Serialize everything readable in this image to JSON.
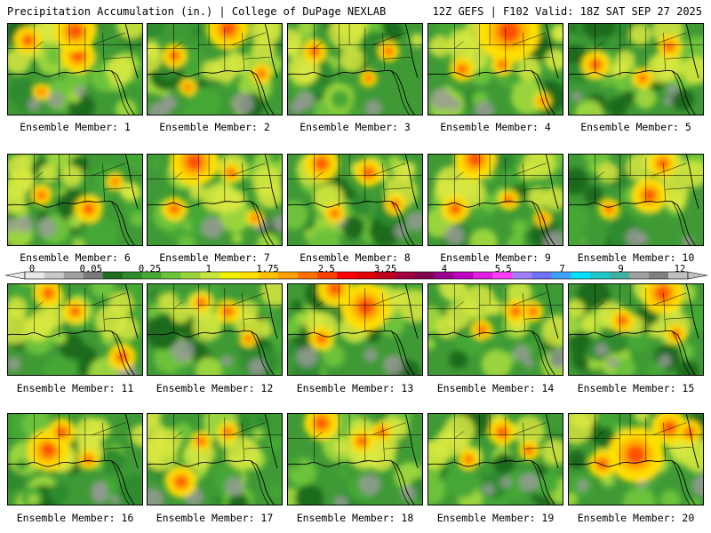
{
  "header": {
    "title_left": "Precipitation Accumulation (in.) | College of DuPage NEXLAB",
    "title_right": "12Z GEFS | F102 Valid: 18Z SAT SEP 27 2025"
  },
  "colorbar": {
    "labels": [
      "0",
      "0.05",
      "0.25",
      "1",
      "1.75",
      "2.5",
      "3.25",
      "4",
      "5.5",
      "7",
      "9",
      "12"
    ],
    "colors": [
      "#e8e8e8",
      "#c8c8c8",
      "#a0a0a0",
      "#7a7a7a",
      "#1f6b1f",
      "#2e8b2e",
      "#45a835",
      "#6cc23a",
      "#9ad43c",
      "#c8e640",
      "#f0f000",
      "#ffe000",
      "#ffc000",
      "#ffa000",
      "#ff7000",
      "#ff4000",
      "#ff0000",
      "#e00000",
      "#c00020",
      "#a00040",
      "#800050",
      "#9a0090",
      "#c000c0",
      "#e020e0",
      "#ff40ff",
      "#a080ff",
      "#7070ff",
      "#40a0ff",
      "#00e0ff",
      "#20c8c8",
      "#40b0a0",
      "#a0a0a0",
      "#808080",
      "#c0c0c0"
    ]
  },
  "members": [
    {
      "caption": "Ensemble Member: 1",
      "hot": [
        [
          0.52,
          0.35,
          0.1
        ],
        [
          0.5,
          0.08,
          0.12
        ],
        [
          0.15,
          0.18,
          0.08
        ],
        [
          0.25,
          0.75,
          0.05
        ]
      ]
    },
    {
      "caption": "Ensemble Member: 2",
      "hot": [
        [
          0.6,
          0.05,
          0.12
        ],
        [
          0.85,
          0.55,
          0.06
        ],
        [
          0.2,
          0.35,
          0.07
        ],
        [
          0.3,
          0.7,
          0.05
        ]
      ]
    },
    {
      "caption": "Ensemble Member: 3",
      "hot": [
        [
          0.2,
          0.3,
          0.07
        ],
        [
          0.75,
          0.3,
          0.06
        ],
        [
          0.6,
          0.6,
          0.05
        ]
      ]
    },
    {
      "caption": "Ensemble Member: 4",
      "hot": [
        [
          0.6,
          0.08,
          0.18
        ],
        [
          0.25,
          0.5,
          0.07
        ],
        [
          0.85,
          0.85,
          0.05
        ],
        [
          0.55,
          0.45,
          0.06
        ]
      ]
    },
    {
      "caption": "Ensemble Member: 5",
      "hot": [
        [
          0.2,
          0.45,
          0.08
        ],
        [
          0.75,
          0.25,
          0.07
        ],
        [
          0.55,
          0.6,
          0.06
        ]
      ]
    },
    {
      "caption": "Ensemble Member: 6",
      "hot": [
        [
          0.6,
          0.6,
          0.08
        ],
        [
          0.25,
          0.45,
          0.06
        ],
        [
          0.8,
          0.3,
          0.05
        ]
      ]
    },
    {
      "caption": "Ensemble Member: 7",
      "hot": [
        [
          0.35,
          0.08,
          0.14
        ],
        [
          0.62,
          0.2,
          0.06
        ],
        [
          0.2,
          0.6,
          0.07
        ],
        [
          0.8,
          0.7,
          0.05
        ]
      ]
    },
    {
      "caption": "Ensemble Member: 8",
      "hot": [
        [
          0.25,
          0.1,
          0.1
        ],
        [
          0.6,
          0.2,
          0.08
        ],
        [
          0.8,
          0.55,
          0.06
        ],
        [
          0.35,
          0.65,
          0.06
        ]
      ]
    },
    {
      "caption": "Ensemble Member: 9",
      "hot": [
        [
          0.35,
          0.05,
          0.12
        ],
        [
          0.2,
          0.6,
          0.08
        ],
        [
          0.6,
          0.5,
          0.06
        ],
        [
          0.85,
          0.7,
          0.05
        ]
      ]
    },
    {
      "caption": "Ensemble Member: 10",
      "hot": [
        [
          0.6,
          0.45,
          0.1
        ],
        [
          0.7,
          0.1,
          0.08
        ],
        [
          0.3,
          0.6,
          0.06
        ]
      ]
    },
    {
      "caption": "Ensemble Member: 11",
      "hot": [
        [
          0.85,
          0.8,
          0.08
        ],
        [
          0.5,
          0.3,
          0.07
        ],
        [
          0.3,
          0.1,
          0.08
        ]
      ]
    },
    {
      "caption": "Ensemble Member: 12",
      "hot": [
        [
          0.6,
          0.3,
          0.07
        ],
        [
          0.4,
          0.2,
          0.06
        ],
        [
          0.75,
          0.6,
          0.05
        ]
      ]
    },
    {
      "caption": "Ensemble Member: 13",
      "hot": [
        [
          0.58,
          0.25,
          0.14
        ],
        [
          0.35,
          0.05,
          0.1
        ],
        [
          0.25,
          0.6,
          0.07
        ]
      ]
    },
    {
      "caption": "Ensemble Member: 14",
      "hot": [
        [
          0.65,
          0.3,
          0.07
        ],
        [
          0.78,
          0.3,
          0.06
        ],
        [
          0.4,
          0.5,
          0.06
        ]
      ]
    },
    {
      "caption": "Ensemble Member: 15",
      "hot": [
        [
          0.7,
          0.1,
          0.12
        ],
        [
          0.4,
          0.4,
          0.07
        ],
        [
          0.8,
          0.55,
          0.06
        ]
      ]
    },
    {
      "caption": "Ensemble Member: 16",
      "hot": [
        [
          0.3,
          0.4,
          0.12
        ],
        [
          0.4,
          0.2,
          0.08
        ],
        [
          0.6,
          0.5,
          0.06
        ]
      ]
    },
    {
      "caption": "Ensemble Member: 17",
      "hot": [
        [
          0.25,
          0.75,
          0.09
        ],
        [
          0.4,
          0.3,
          0.06
        ],
        [
          0.6,
          0.2,
          0.06
        ]
      ]
    },
    {
      "caption": "Ensemble Member: 18",
      "hot": [
        [
          0.25,
          0.1,
          0.1
        ],
        [
          0.55,
          0.3,
          0.07
        ],
        [
          0.7,
          0.2,
          0.06
        ]
      ]
    },
    {
      "caption": "Ensemble Member: 19",
      "hot": [
        [
          0.55,
          0.2,
          0.08
        ],
        [
          0.75,
          0.4,
          0.06
        ],
        [
          0.3,
          0.5,
          0.06
        ]
      ]
    },
    {
      "caption": "Ensemble Member: 20",
      "hot": [
        [
          0.5,
          0.45,
          0.16
        ],
        [
          0.75,
          0.15,
          0.1
        ],
        [
          0.25,
          0.55,
          0.08
        ],
        [
          0.9,
          0.2,
          0.07
        ]
      ]
    }
  ]
}
